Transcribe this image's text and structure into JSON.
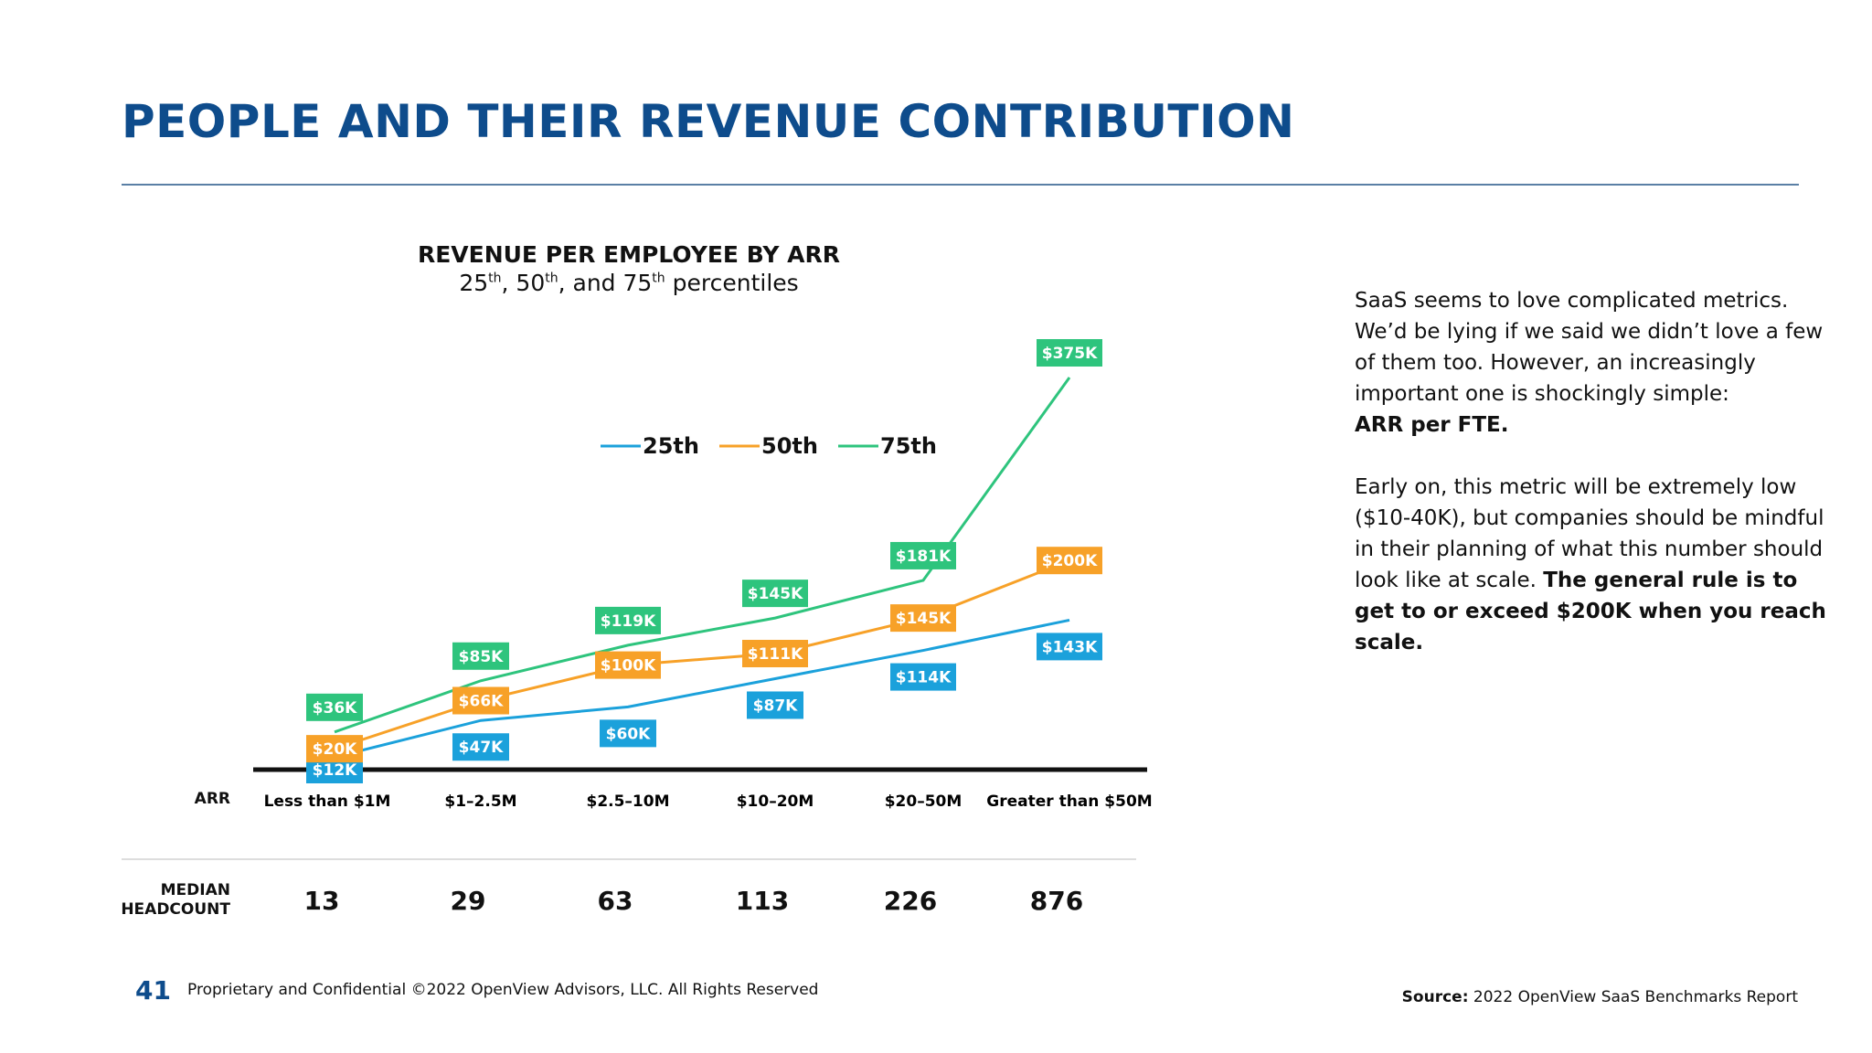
{
  "title": "PEOPLE AND THEIR REVENUE CONTRIBUTION",
  "chart_data": {
    "type": "line",
    "title": "REVENUE PER EMPLOYEE BY ARR",
    "subtitle": {
      "pre": "25",
      "sup1": "th",
      "mid1": ", 50",
      "sup2": "th",
      "mid2": ", and 75",
      "sup3": "th",
      "post": " percentiles"
    },
    "xlabel": "ARR",
    "categories": [
      "Less than $1M",
      "$1–2.5M",
      "$2.5–10M",
      "$10–20M",
      "$20–50M",
      "Greater than $50M"
    ],
    "ylim": [
      0,
      400
    ],
    "unit": "$K",
    "legend_position": "top-center",
    "grid": false,
    "series": [
      {
        "name": "25th",
        "color": "#1ba1db",
        "values": [
          12,
          47,
          60,
          87,
          114,
          143
        ],
        "labels": [
          "$12K",
          "$47K",
          "$60K",
          "$87K",
          "$114K",
          "$143K"
        ]
      },
      {
        "name": "50th",
        "color": "#f7a128",
        "values": [
          20,
          66,
          100,
          111,
          145,
          200
        ],
        "labels": [
          "$20K",
          "$66K",
          "$100K",
          "$111K",
          "$145K",
          "$200K"
        ]
      },
      {
        "name": "75th",
        "color": "#2ec47d",
        "values": [
          36,
          85,
          119,
          145,
          181,
          375
        ],
        "labels": [
          "$36K",
          "$85K",
          "$119K",
          "$145K",
          "$181K",
          "$375K"
        ]
      }
    ]
  },
  "headcount": {
    "label_line1": "MEDIAN",
    "label_line2": "HEADCOUNT",
    "values": [
      "13",
      "29",
      "63",
      "113",
      "226",
      "876"
    ]
  },
  "side_text": {
    "p1": "SaaS seems to love complicated metrics. We’d be lying if we said we didn’t love a few of them too. However, an increasingly important one is shockingly simple:",
    "p1_bold": "ARR per FTE.",
    "p2": "Early on, this metric will be extremely low ($10-40K), but companies should be mindful in their planning of what this number should look like at scale.",
    "p2_bold": "The general rule is to get to or exceed $200K when you reach scale."
  },
  "footer": {
    "page_number": "41",
    "text": "Proprietary and Confidential ©2022 OpenView Advisors, LLC. All Rights Reserved",
    "source_label": "Source:",
    "source_text": "2022 OpenView SaaS Benchmarks Report"
  }
}
